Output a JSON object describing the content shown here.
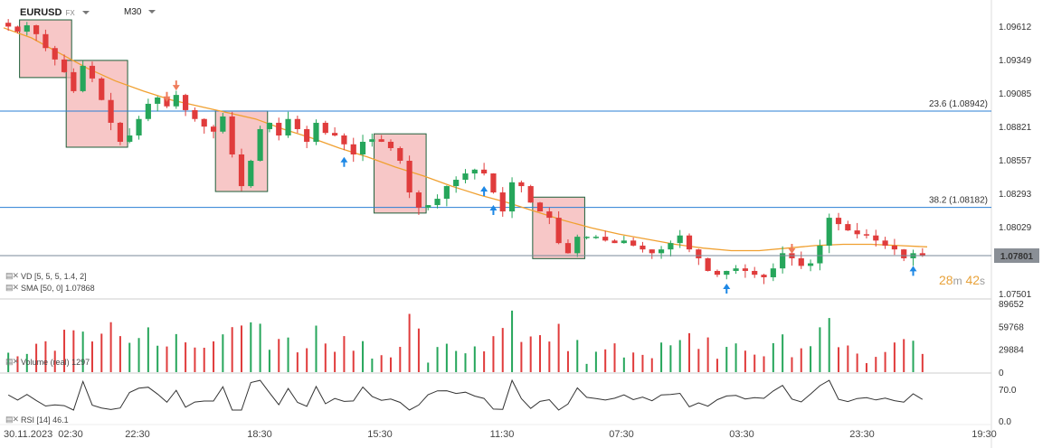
{
  "header": {
    "symbol": "EURUSD",
    "asset_class": "FX",
    "timeframe": "M30"
  },
  "indicators": {
    "vd": "VD [5, 5, 5, 1.4, 2]",
    "sma": "SMA [50, 0] 1.07868",
    "volume": "Volume (real) 1297",
    "rsi": "RSI [14] 46.1"
  },
  "timer": {
    "minutes": "28",
    "m": "m",
    "seconds": "42",
    "s": "s"
  },
  "colors": {
    "up": "#26a65b",
    "down": "#e03c3c",
    "sma": "#f0a030",
    "fib": "#2a7fd4",
    "box": "#f4b4b4",
    "arrow_up": "#1e88e5",
    "arrow_down": "#ef7c5c"
  },
  "chart_data": {
    "type": "candlestick",
    "price_axis": {
      "ticks": [
        "1.09612",
        "1.09349",
        "1.09085",
        "1.08821",
        "1.08557",
        "1.08293",
        "1.08029",
        "1.07801",
        "1.07501"
      ],
      "ylim": [
        1.0748,
        1.0972
      ]
    },
    "last_price": 1.07801,
    "last_price_label": "1.07801",
    "fib_levels": [
      {
        "label": "23.6 (1.08942)",
        "value": 1.08942
      },
      {
        "label": "38.2 (1.08182)",
        "value": 1.08182
      }
    ],
    "x_ticks": [
      "30.11.2023",
      "02:30",
      "22:30",
      "18:30",
      "15:30",
      "11:30",
      "07:30",
      "03:30",
      "23:30",
      "19:30"
    ],
    "close_series": [
      1.0961,
      1.0957,
      1.0962,
      1.0955,
      1.0944,
      1.0935,
      1.0925,
      1.091,
      1.093,
      1.092,
      1.0903,
      1.0885,
      1.087,
      1.0875,
      1.0888,
      1.09,
      1.0905,
      1.0898,
      1.0907,
      1.0895,
      1.0888,
      1.0882,
      1.0878,
      1.089,
      1.086,
      1.0835,
      1.0855,
      1.088,
      1.0885,
      1.0875,
      1.0888,
      1.088,
      1.087,
      1.0885,
      1.0877,
      1.0875,
      1.0868,
      1.086,
      1.087,
      1.0872,
      1.087,
      1.0865,
      1.0855,
      1.083,
      1.0818,
      1.082,
      1.0825,
      1.0835,
      1.084,
      1.0845,
      1.0848,
      1.0845,
      1.083,
      1.0815,
      1.0838,
      1.0835,
      1.0822,
      1.0815,
      1.081,
      1.079,
      1.0782,
      1.0795,
      1.0795,
      1.0795,
      1.0792,
      1.079,
      1.0792,
      1.0788,
      1.0785,
      1.0782,
      1.0785,
      1.079,
      1.0796,
      1.0785,
      1.0778,
      1.0768,
      1.0765,
      1.0768,
      1.077,
      1.0768,
      1.0765,
      1.0763,
      1.077,
      1.0782,
      1.0778,
      1.0772,
      1.0774,
      1.0788,
      1.081,
      1.0805,
      1.08,
      1.0797,
      1.0796,
      1.0792,
      1.0788,
      1.0785,
      1.0778,
      1.0782,
      1.078
    ],
    "sma_series": [
      1.096,
      1.0952,
      1.094,
      1.0928,
      1.0918,
      1.091,
      1.0903,
      1.0898,
      1.0893,
      1.0888,
      1.088,
      1.0873,
      1.0865,
      1.0858,
      1.085,
      1.0843,
      1.0835,
      1.0828,
      1.0822,
      1.0815,
      1.0808,
      1.0802,
      1.0797,
      1.0793,
      1.0789,
      1.0786,
      1.0784,
      1.0784,
      1.0786,
      1.0788,
      1.0789,
      1.0789,
      1.0788,
      1.0787
    ],
    "volume_axis": {
      "ticks": [
        "89652",
        "59768",
        "29884",
        "0"
      ],
      "max": 89652
    },
    "rsi_axis": {
      "ticks": [
        "70.0",
        "0.0"
      ]
    },
    "boxes": [
      {
        "i0": 2,
        "i1": 6
      },
      {
        "i0": 7,
        "i1": 12
      },
      {
        "i0": 23,
        "i1": 27
      },
      {
        "i0": 40,
        "i1": 44
      },
      {
        "i0": 57,
        "i1": 61
      }
    ],
    "arrows_up": [
      36,
      51,
      52,
      77,
      97
    ],
    "arrows_down": [
      17,
      18,
      84
    ]
  }
}
